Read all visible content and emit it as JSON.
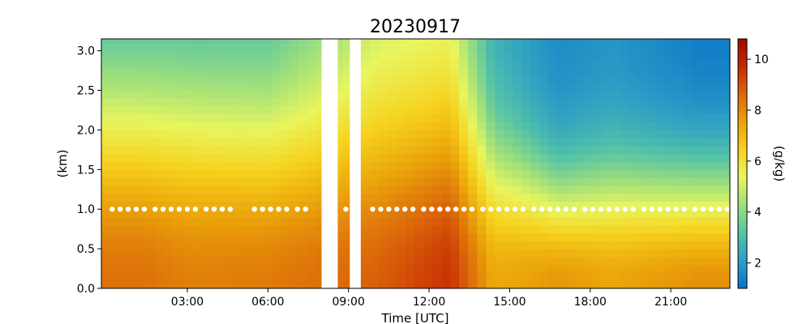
{
  "chart_data": {
    "type": "heatmap",
    "title": "20230917",
    "xlabel": "Time [UTC]",
    "ylabel": "(km)",
    "colorbar_label": "(g/kg)",
    "xlim_hours": [
      -0.2,
      23.2
    ],
    "ylim_km": [
      0.0,
      3.15
    ],
    "x_ticks": [
      {
        "hour": 3,
        "label": "03:00"
      },
      {
        "hour": 6,
        "label": "06:00"
      },
      {
        "hour": 9,
        "label": "09:00"
      },
      {
        "hour": 12,
        "label": "12:00"
      },
      {
        "hour": 15,
        "label": "15:00"
      },
      {
        "hour": 18,
        "label": "18:00"
      },
      {
        "hour": 21,
        "label": "21:00"
      }
    ],
    "y_ticks": [
      {
        "value": 0.0,
        "label": "0.0"
      },
      {
        "value": 0.5,
        "label": "0.5"
      },
      {
        "value": 1.0,
        "label": "1.0"
      },
      {
        "value": 1.5,
        "label": "1.5"
      },
      {
        "value": 2.0,
        "label": "2.0"
      },
      {
        "value": 2.5,
        "label": "2.5"
      },
      {
        "value": 3.0,
        "label": "3.0"
      }
    ],
    "colorbar": {
      "vmin": 1.0,
      "vmax": 10.8,
      "ticks": [
        {
          "value": 2,
          "label": "2"
        },
        {
          "value": 4,
          "label": "4"
        },
        {
          "value": 6,
          "label": "6"
        },
        {
          "value": 8,
          "label": "8"
        },
        {
          "value": 10,
          "label": "10"
        }
      ],
      "colors": [
        "#0a72c8",
        "#2e9fc4",
        "#55c3a6",
        "#9ddf7c",
        "#e8f55e",
        "#f6d21e",
        "#eaa40a",
        "#dc6a0a",
        "#c62a05",
        "#a00a00"
      ]
    },
    "grid": false,
    "data_gaps_hours": [
      [
        8.0,
        8.6
      ],
      [
        9.05,
        9.45
      ]
    ],
    "profile_gap_hours": [
      [
        8.95,
        9.05
      ]
    ],
    "time_step_hours": 0.333,
    "height_step_km": 0.1,
    "column_profile_hours": [
      1.2,
      3.2,
      6.0,
      10.1,
      12.8,
      14.4,
      16.8,
      18.8,
      22.0
    ],
    "surface_mixing_ratio_gkg": [
      8.5,
      8.2,
      8.3,
      8.8,
      9.6,
      7.4,
      7.8,
      7.5,
      7.9
    ],
    "decay_height_km": [
      2.6,
      2.6,
      2.4,
      2.3,
      2.4,
      1.8,
      1.4,
      1.5,
      1.5
    ],
    "min_mixing_ratio_gkg": [
      2.0,
      2.0,
      2.4,
      4.5,
      4.6,
      2.4,
      1.6,
      1.8,
      1.2
    ],
    "marker_height_km": 1.0,
    "marker_hours": [
      0.2,
      0.5,
      0.8,
      1.1,
      1.4,
      1.8,
      2.1,
      2.4,
      2.7,
      3.0,
      3.3,
      3.7,
      4.0,
      4.3,
      4.6,
      5.5,
      5.8,
      6.1,
      6.4,
      6.7,
      7.1,
      7.4,
      8.9,
      9.9,
      10.2,
      10.5,
      10.8,
      11.1,
      11.4,
      11.8,
      12.1,
      12.4,
      12.7,
      13.0,
      13.3,
      13.6,
      14.0,
      14.3,
      14.6,
      14.9,
      15.2,
      15.5,
      15.9,
      16.2,
      16.5,
      16.8,
      17.1,
      17.4,
      17.8,
      18.1,
      18.4,
      18.7,
      19.0,
      19.3,
      19.6,
      20.0,
      20.3,
      20.6,
      20.9,
      21.2,
      21.5,
      21.9,
      22.2,
      22.5,
      22.8,
      23.1
    ]
  }
}
